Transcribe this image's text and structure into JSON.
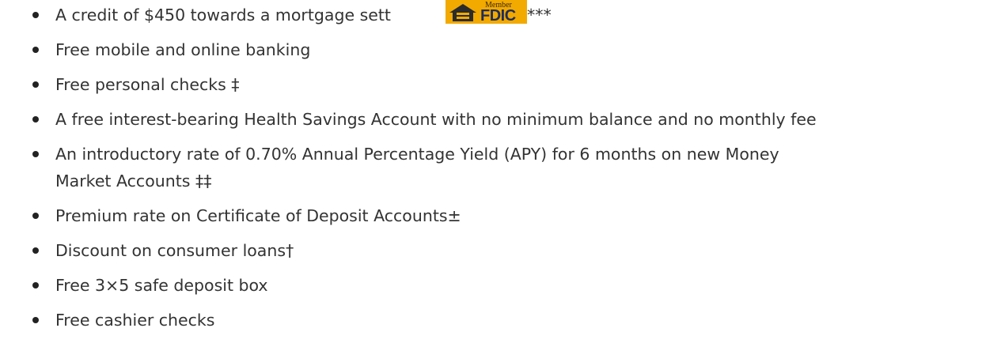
{
  "list": {
    "items": [
      {
        "text_before": "A credit of $450 towards a mortgage sett",
        "text_after": "***"
      },
      {
        "text": "Free mobile and online banking"
      },
      {
        "text": "Free personal checks ‡"
      },
      {
        "text": "A free interest-bearing Health Savings Account with no minimum balance and no monthly fee"
      },
      {
        "lines": [
          "An introductory rate of 0.70% Annual Percentage Yield (APY) for 6 months on new Money",
          "Market Accounts ‡‡"
        ]
      },
      {
        "text": "Premium rate on Certificate of Deposit Accounts±"
      },
      {
        "text": "Discount on consumer loans†"
      },
      {
        "text": "Free 3×5 safe deposit box"
      },
      {
        "text": "Free cashier checks"
      }
    ]
  },
  "badge": {
    "top": "Member",
    "main": "FDIC"
  }
}
